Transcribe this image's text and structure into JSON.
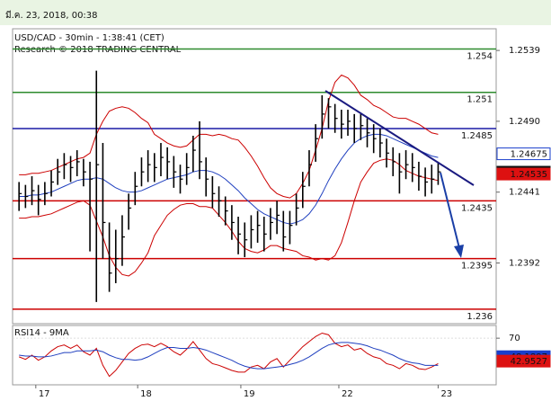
{
  "header": {
    "date": "มี.ค. 23, 2018, 00:38"
  },
  "chart_data": [
    {
      "type": "ohlc",
      "title": "USD/CAD - 30min - 1:38:41 (CET)",
      "subtitle": "Research © 2018 TRADING CENTRAL",
      "xlim": [
        -1,
        74
      ],
      "xticks": [
        {
          "value": 2.6,
          "label": "17"
        },
        {
          "value": 18.4,
          "label": "18"
        },
        {
          "value": 34.4,
          "label": "19"
        },
        {
          "value": 49.6,
          "label": "22"
        },
        {
          "value": 65,
          "label": "23"
        }
      ],
      "ylim": [
        1.235,
        1.2554
      ],
      "yticks": [
        1.2539,
        {
          "value": 1.249,
          "label": "1.2490"
        },
        1.2441,
        1.2392
      ],
      "color": "#000000",
      "high": [
        1.2448,
        1.2446,
        1.2452,
        1.2446,
        1.2448,
        1.2456,
        1.2464,
        1.2468,
        1.2466,
        1.247,
        1.2464,
        1.2462,
        1.2525,
        1.2475,
        1.242,
        1.2415,
        1.2425,
        1.244,
        1.2455,
        1.2465,
        1.247,
        1.2468,
        1.2475,
        1.2472,
        1.2466,
        1.246,
        1.2468,
        1.248,
        1.249,
        1.2465,
        1.2452,
        1.2445,
        1.2438,
        1.2432,
        1.2424,
        1.242,
        1.2425,
        1.2428,
        1.2424,
        1.243,
        1.2435,
        1.2428,
        1.2428,
        1.244,
        1.2455,
        1.247,
        1.2488,
        1.2508,
        1.2506,
        1.2502,
        1.2498,
        1.2498,
        1.2495,
        1.2495,
        1.2492,
        1.2488,
        1.2485,
        1.2478,
        1.2472,
        1.2468,
        1.247,
        1.2468,
        1.2462,
        1.2458,
        1.246,
        1.2462
      ],
      "low": [
        1.2428,
        1.243,
        1.2432,
        1.2425,
        1.2432,
        1.2438,
        1.2446,
        1.245,
        1.2448,
        1.2452,
        1.2445,
        1.24,
        1.2365,
        1.2395,
        1.2372,
        1.2378,
        1.239,
        1.2415,
        1.2432,
        1.2445,
        1.2448,
        1.2448,
        1.2452,
        1.245,
        1.2444,
        1.244,
        1.2446,
        1.2455,
        1.245,
        1.2438,
        1.243,
        1.2424,
        1.2418,
        1.2408,
        1.2398,
        1.2396,
        1.2402,
        1.2406,
        1.24,
        1.2408,
        1.2412,
        1.24,
        1.2405,
        1.2418,
        1.243,
        1.2445,
        1.2462,
        1.2478,
        1.2485,
        1.2482,
        1.2478,
        1.248,
        1.2475,
        1.2477,
        1.2472,
        1.2468,
        1.2465,
        1.2458,
        1.2452,
        1.244,
        1.245,
        1.2448,
        1.2442,
        1.2438,
        1.244,
        1.2446
      ],
      "close": [
        1.244,
        1.2438,
        1.2442,
        1.2436,
        1.244,
        1.2448,
        1.2455,
        1.246,
        1.2458,
        1.2462,
        1.2455,
        1.245,
        1.246,
        1.242,
        1.2385,
        1.2395,
        1.241,
        1.243,
        1.2445,
        1.2455,
        1.246,
        1.2458,
        1.2465,
        1.2462,
        1.2455,
        1.245,
        1.2458,
        1.247,
        1.2462,
        1.245,
        1.244,
        1.2435,
        1.2428,
        1.242,
        1.2412,
        1.2408,
        1.2415,
        1.2418,
        1.2412,
        1.242,
        1.2425,
        1.241,
        1.2418,
        1.243,
        1.2445,
        1.246,
        1.2478,
        1.2495,
        1.25,
        1.2492,
        1.2488,
        1.249,
        1.2485,
        1.2487,
        1.2482,
        1.2478,
        1.2475,
        1.2468,
        1.2462,
        1.2455,
        1.246,
        1.2458,
        1.2452,
        1.2448,
        1.245,
        1.2455
      ],
      "overlays": [
        {
          "color": "#cc0000",
          "values": [
            1.2453,
            1.2453,
            1.2454,
            1.2454,
            1.2455,
            1.2456,
            1.2458,
            1.246,
            1.2462,
            1.2464,
            1.2465,
            1.2468,
            1.2481,
            1.249,
            1.2497,
            1.2499,
            1.25,
            1.2499,
            1.2496,
            1.2492,
            1.2489,
            1.2481,
            1.2478,
            1.2475,
            1.2473,
            1.2472,
            1.2473,
            1.2477,
            1.2481,
            1.2481,
            1.248,
            1.2481,
            1.248,
            1.2478,
            1.2477,
            1.2472,
            1.2466,
            1.2459,
            1.2451,
            1.2444,
            1.244,
            1.2438,
            1.2437,
            1.244,
            1.2447,
            1.2456,
            1.247,
            1.2485,
            1.2504,
            1.2517,
            1.2522,
            1.252,
            1.2515,
            1.2508,
            1.2505,
            1.2501,
            1.2499,
            1.2496,
            1.2493,
            1.2492,
            1.2492,
            1.249,
            1.2488,
            1.2485,
            1.2482,
            1.2481
          ]
        },
        {
          "color": "#cc0000",
          "values": [
            1.2423,
            1.2423,
            1.2424,
            1.2424,
            1.2425,
            1.2426,
            1.2428,
            1.243,
            1.2432,
            1.2434,
            1.2435,
            1.2432,
            1.2421,
            1.241,
            1.2397,
            1.2389,
            1.2384,
            1.2383,
            1.2386,
            1.2392,
            1.2399,
            1.2411,
            1.2418,
            1.2425,
            1.2429,
            1.2432,
            1.2433,
            1.2433,
            1.2431,
            1.2431,
            1.243,
            1.2425,
            1.242,
            1.2414,
            1.2407,
            1.2402,
            1.24,
            1.2399,
            1.2401,
            1.2404,
            1.2404,
            1.2402,
            1.2401,
            1.24,
            1.2397,
            1.2396,
            1.2394,
            1.2395,
            1.2394,
            1.2397,
            1.2406,
            1.242,
            1.2435,
            1.2448,
            1.2455,
            1.2461,
            1.2463,
            1.2464,
            1.2463,
            1.246,
            1.2456,
            1.2454,
            1.2452,
            1.2451,
            1.245,
            1.2449
          ]
        },
        {
          "color": "#1f3fbf",
          "values": [
            1.2438,
            1.2438,
            1.2439,
            1.2439,
            1.244,
            1.2441,
            1.2443,
            1.2445,
            1.2447,
            1.2449,
            1.245,
            1.245,
            1.2451,
            1.245,
            1.2447,
            1.2444,
            1.2442,
            1.2441,
            1.2441,
            1.2442,
            1.2444,
            1.2446,
            1.2448,
            1.245,
            1.2451,
            1.2452,
            1.2453,
            1.2455,
            1.2456,
            1.2456,
            1.2455,
            1.2453,
            1.245,
            1.2446,
            1.2442,
            1.2437,
            1.2433,
            1.2429,
            1.2426,
            1.2424,
            1.2422,
            1.242,
            1.2419,
            1.242,
            1.2422,
            1.2426,
            1.2432,
            1.244,
            1.2449,
            1.2457,
            1.2464,
            1.247,
            1.2475,
            1.2478,
            1.248,
            1.2481,
            1.2481,
            1.248,
            1.2478,
            1.2476,
            1.2474,
            1.2472,
            1.247,
            1.2468,
            1.2466,
            1.2465
          ]
        }
      ],
      "levels": [
        {
          "value": 1.254,
          "color": "#2e8b2e"
        },
        {
          "value": 1.251,
          "color": "#2e8b2e"
        },
        {
          "value": 1.2485,
          "color": "#1a1aa6"
        },
        {
          "value": 1.2435,
          "color": "#cc0000"
        },
        {
          "value": 1.2395,
          "color": "#cc0000"
        },
        {
          "value": 1.236,
          "color": "#cc0000"
        }
      ],
      "price_tags": [
        {
          "value": 1.24675,
          "color": "#1a3fcc",
          "filled": false
        },
        {
          "value": 1.24548,
          "color": "#111111",
          "filled": true
        },
        {
          "value": 1.24535,
          "color": "#dd1111",
          "filled": true
        }
      ]
    },
    {
      "type": "line",
      "title": "RSI14 - 9MA",
      "xlim": [
        -1,
        74
      ],
      "ylim": [
        15,
        85
      ],
      "yticks": [
        70
      ],
      "series": [
        {
          "color": "#cc0000",
          "values": [
            48,
            45,
            50,
            44,
            48,
            55,
            60,
            62,
            58,
            62,
            54,
            50,
            58,
            38,
            25,
            32,
            42,
            52,
            58,
            62,
            63,
            60,
            64,
            60,
            54,
            50,
            57,
            66,
            56,
            46,
            40,
            38,
            35,
            32,
            30,
            30,
            36,
            38,
            34,
            42,
            46,
            36,
            44,
            52,
            60,
            66,
            72,
            76,
            74,
            64,
            60,
            62,
            56,
            58,
            52,
            48,
            46,
            40,
            38,
            34,
            40,
            38,
            34,
            33,
            36,
            40
          ]
        },
        {
          "color": "#1f3fbf",
          "values": [
            50,
            49,
            49,
            48,
            48,
            49,
            51,
            53,
            53,
            55,
            55,
            55,
            56,
            54,
            50,
            47,
            45,
            45,
            44,
            45,
            48,
            52,
            56,
            59,
            59,
            58,
            58,
            59,
            58,
            56,
            53,
            50,
            47,
            44,
            40,
            37,
            35,
            34,
            34,
            35,
            36,
            37,
            39,
            41,
            44,
            48,
            53,
            58,
            62,
            64,
            65,
            65,
            64,
            63,
            61,
            58,
            56,
            53,
            50,
            46,
            43,
            41,
            40,
            38,
            38,
            38
          ]
        }
      ],
      "price_tags": [
        {
          "value": 48.1897,
          "color": "#1a3fcc",
          "filled": true
        },
        {
          "value": 42.9527,
          "color": "#dd1111",
          "filled": true
        }
      ]
    }
  ]
}
